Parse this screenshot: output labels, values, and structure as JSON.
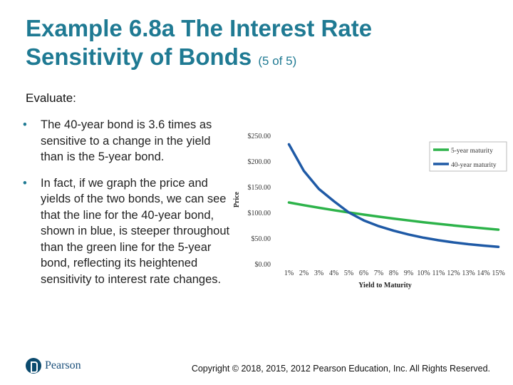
{
  "slide": {
    "title": "Example 6.8a The Interest Rate Sensitivity of Bonds",
    "title_suffix": "(5 of 5)",
    "evaluate_label": "Evaluate:",
    "bullets": [
      "The 40-year bond is 3.6 times as sensitive to a change in the yield than is the 5-year bond.",
      "In fact, if we graph the price and yields of the two bonds, we can see that the line for the 40-year bond, shown in blue, is steeper throughout than the green line for the 5-year bond, reflecting its heightened sensitivity to interest rate changes."
    ],
    "bullet_symbol": "•",
    "logo_text": "Pearson",
    "copyright": "Copyright © 2018, 2015, 2012 Pearson Education, Inc. All Rights Reserved."
  },
  "colors": {
    "title": "#1f7a93",
    "five_year": "#2db34a",
    "forty_year": "#1f5aa6",
    "axis_text": "#333333"
  },
  "chart_data": {
    "type": "line",
    "xlabel": "Yield to Maturity",
    "ylabel": "Price",
    "x": [
      "1%",
      "2%",
      "3%",
      "4%",
      "5%",
      "6%",
      "7%",
      "8%",
      "9%",
      "10%",
      "11%",
      "12%",
      "13%",
      "14%",
      "15%"
    ],
    "y_ticks": [
      "$0.00",
      "$50.00",
      "$100.00",
      "$150.00",
      "$200.00",
      "$250.00"
    ],
    "ylim": [
      0,
      250
    ],
    "grid": false,
    "legend_position": "top-right",
    "series": [
      {
        "name": "5-year maturity",
        "values": [
          119.4,
          114.1,
          109.2,
          104.4,
          100.0,
          95.8,
          91.8,
          88.0,
          84.4,
          81.0,
          77.8,
          74.7,
          71.9,
          69.0,
          66.5
        ]
      },
      {
        "name": "40-year maturity",
        "values": [
          232.8,
          180.8,
          145.9,
          122.1,
          100.0,
          84.6,
          73.3,
          64.5,
          57.1,
          50.9,
          45.8,
          41.6,
          38.2,
          35.4,
          33.1
        ]
      }
    ]
  }
}
